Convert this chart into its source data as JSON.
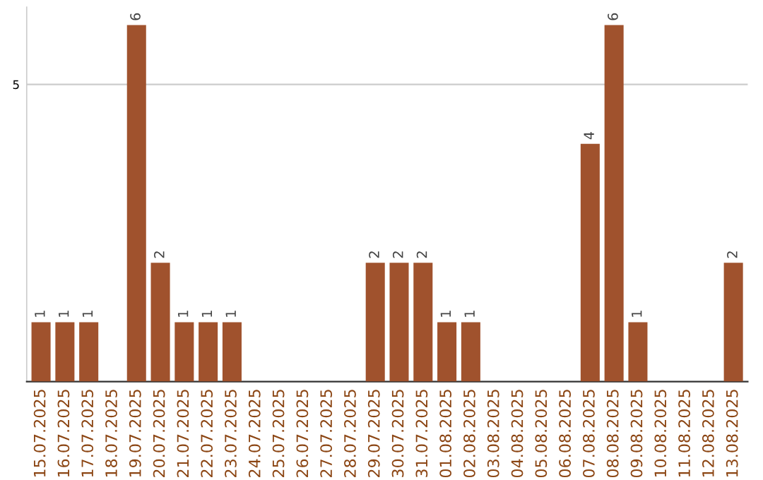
{
  "chart_data": {
    "type": "bar",
    "categories": [
      "15.07.2025",
      "16.07.2025",
      "17.07.2025",
      "18.07.2025",
      "19.07.2025",
      "20.07.2025",
      "21.07.2025",
      "22.07.2025",
      "23.07.2025",
      "24.07.2025",
      "25.07.2025",
      "26.07.2025",
      "27.07.2025",
      "28.07.2025",
      "29.07.2025",
      "30.07.2025",
      "31.07.2025",
      "01.08.2025",
      "02.08.2025",
      "03.08.2025",
      "04.08.2025",
      "05.08.2025",
      "06.08.2025",
      "07.08.2025",
      "08.08.2025",
      "09.08.2025",
      "10.08.2025",
      "11.08.2025",
      "12.08.2025",
      "13.08.2025"
    ],
    "values": [
      1,
      1,
      1,
      0,
      6,
      2,
      1,
      1,
      1,
      0,
      0,
      0,
      0,
      0,
      2,
      2,
      2,
      1,
      1,
      0,
      0,
      0,
      0,
      4,
      6,
      1,
      0,
      0,
      0,
      2
    ],
    "value_labels": [
      "1",
      "1",
      "1",
      null,
      "6",
      "2",
      "1",
      "1",
      "1",
      null,
      null,
      null,
      null,
      null,
      "2",
      "2",
      "2",
      "1",
      "1",
      null,
      null,
      null,
      null,
      "4",
      "6",
      "1",
      null,
      null,
      null,
      "2"
    ],
    "color": "#a0522d",
    "ylim": [
      0,
      6.3
    ],
    "yticks": [
      5
    ],
    "grid": "y"
  }
}
